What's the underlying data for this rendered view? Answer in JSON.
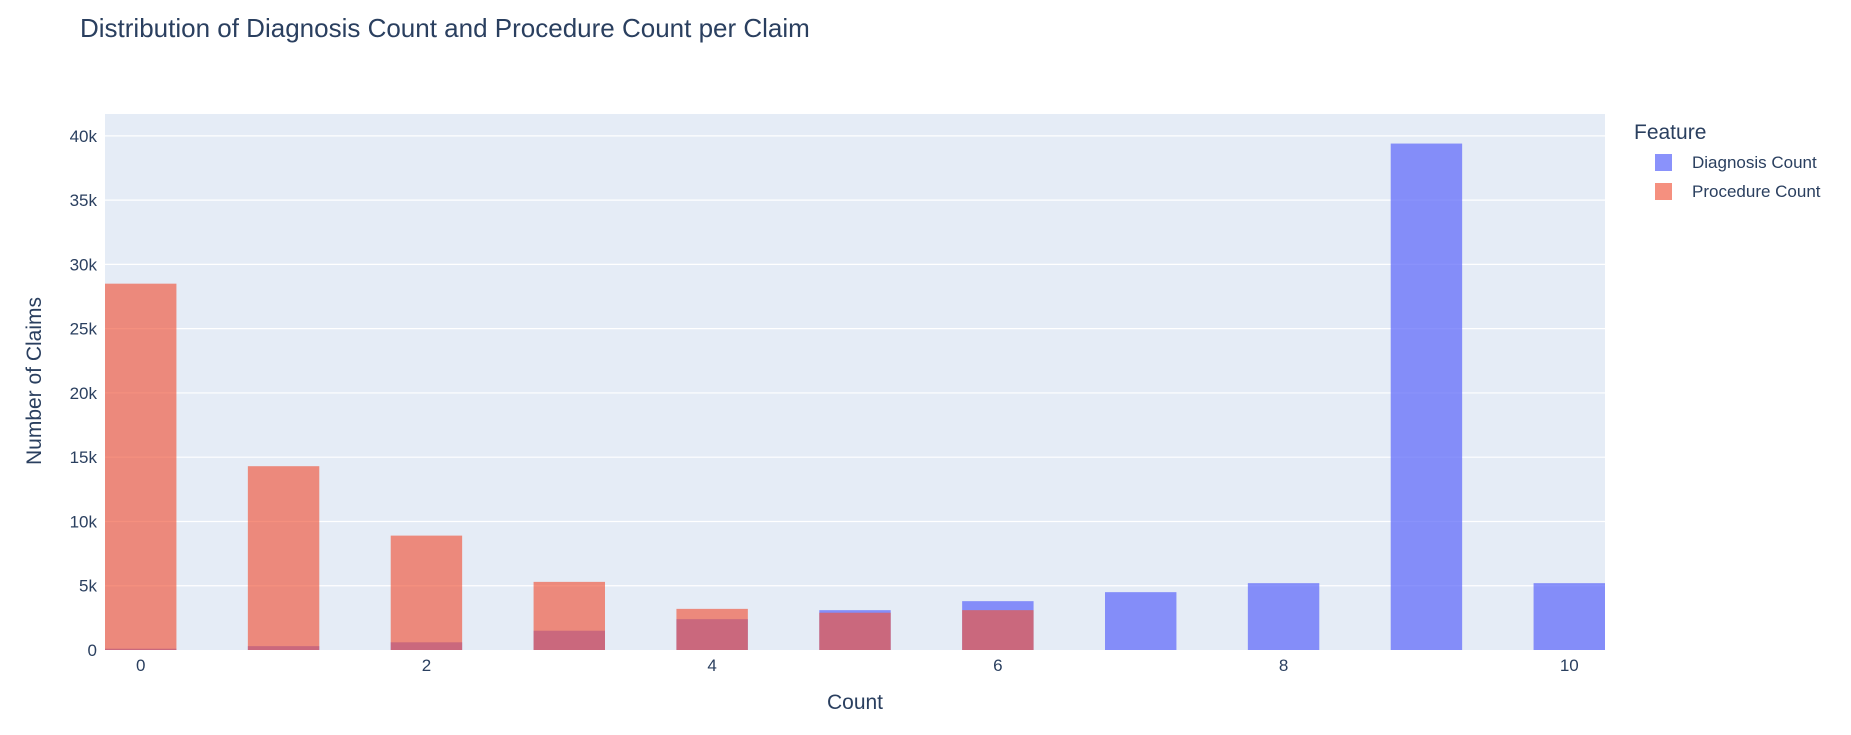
{
  "chart_data": {
    "type": "bar",
    "barmode": "overlay",
    "title": "Distribution of Diagnosis Count and Procedure Count per Claim",
    "xlabel": "Count",
    "ylabel": "Number of Claims",
    "xlim": [
      -0.25,
      10.25
    ],
    "ylim": [
      0,
      41700
    ],
    "x_ticks": [
      0,
      2,
      4,
      6,
      8,
      10
    ],
    "x_tick_labels": [
      "0",
      "2",
      "4",
      "6",
      "8",
      "10"
    ],
    "y_ticks": [
      0,
      5000,
      10000,
      15000,
      20000,
      25000,
      30000,
      35000,
      40000
    ],
    "y_tick_labels": [
      "0",
      "5k",
      "10k",
      "15k",
      "20k",
      "25k",
      "30k",
      "35k",
      "40k"
    ],
    "grid": true,
    "legend": {
      "title": "Feature",
      "position": "top-right"
    },
    "colors": {
      "plot_bg": "#e5ecf6",
      "grid": "#ffffff",
      "text": "#2a3f5f"
    },
    "series": [
      {
        "name": "Diagnosis Count",
        "color": "#636efa",
        "opacity": 0.75,
        "x": [
          0,
          1,
          2,
          3,
          4,
          5,
          6,
          7,
          8,
          9,
          10
        ],
        "values": [
          100,
          300,
          600,
          1500,
          2400,
          3100,
          3800,
          4500,
          5200,
          39400,
          5200
        ]
      },
      {
        "name": "Procedure Count",
        "color": "#ef553b",
        "opacity": 0.65,
        "x": [
          0,
          1,
          2,
          3,
          4,
          5,
          6
        ],
        "values": [
          28500,
          14300,
          8900,
          5300,
          3200,
          2900,
          3100
        ]
      }
    ]
  }
}
